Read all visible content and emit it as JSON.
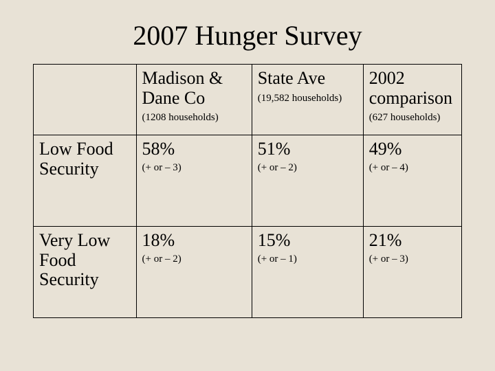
{
  "title": "2007 Hunger Survey",
  "background_color": "#e8e2d6",
  "text_color": "#000000",
  "border_color": "#000000",
  "font_family": "Times New Roman",
  "columns": [
    {
      "header": "Madison & Dane Co",
      "sub": "(1208 households)"
    },
    {
      "header": "State Ave",
      "sub": "(19,582 households)"
    },
    {
      "header": "2002 comparison",
      "sub": "(627 households)"
    }
  ],
  "rows": [
    {
      "label": "Low Food Security",
      "cells": [
        {
          "value": "58%",
          "sub": "(+ or – 3)"
        },
        {
          "value": "51%",
          "sub": "(+ or – 2)"
        },
        {
          "value": "49%",
          "sub": "(+ or – 4)"
        }
      ]
    },
    {
      "label": "Very Low Food Security",
      "cells": [
        {
          "value": "18%",
          "sub": "(+ or – 2)"
        },
        {
          "value": "15%",
          "sub": "(+ or – 1)"
        },
        {
          "value": "21%",
          "sub": "(+ or – 3)"
        }
      ]
    }
  ],
  "column_widths_pct": [
    24,
    27,
    26,
    23
  ],
  "fontsize": {
    "title": 40,
    "header": 26,
    "header_sub": 15,
    "row_label": 26,
    "value": 26,
    "value_sub": 15
  }
}
